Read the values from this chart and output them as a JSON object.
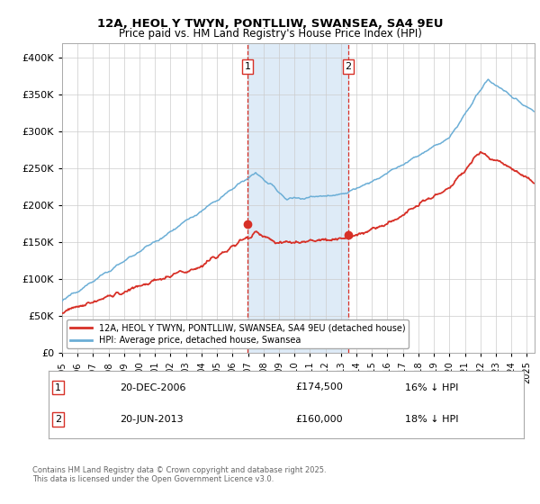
{
  "title": "12A, HEOL Y TWYN, PONTLLIW, SWANSEA, SA4 9EU",
  "subtitle": "Price paid vs. HM Land Registry's House Price Index (HPI)",
  "legend_label_red": "12A, HEOL Y TWYN, PONTLLIW, SWANSEA, SA4 9EU (detached house)",
  "legend_label_blue": "HPI: Average price, detached house, Swansea",
  "footnote": "Contains HM Land Registry data © Crown copyright and database right 2025.\nThis data is licensed under the Open Government Licence v3.0.",
  "purchase1_date": "20-DEC-2006",
  "purchase1_price": 174500,
  "purchase1_label": "16% ↓ HPI",
  "purchase1_year": 2006.97,
  "purchase2_date": "20-JUN-2013",
  "purchase2_price": 160000,
  "purchase2_label": "18% ↓ HPI",
  "purchase2_year": 2013.47,
  "hpi_color": "#6baed6",
  "price_color": "#d73027",
  "shading_color": "#deebf7",
  "vline_color": "#d73027",
  "background_color": "#ffffff",
  "ylim": [
    0,
    420000
  ],
  "xlim_start": 1995,
  "xlim_end": 2025.5
}
